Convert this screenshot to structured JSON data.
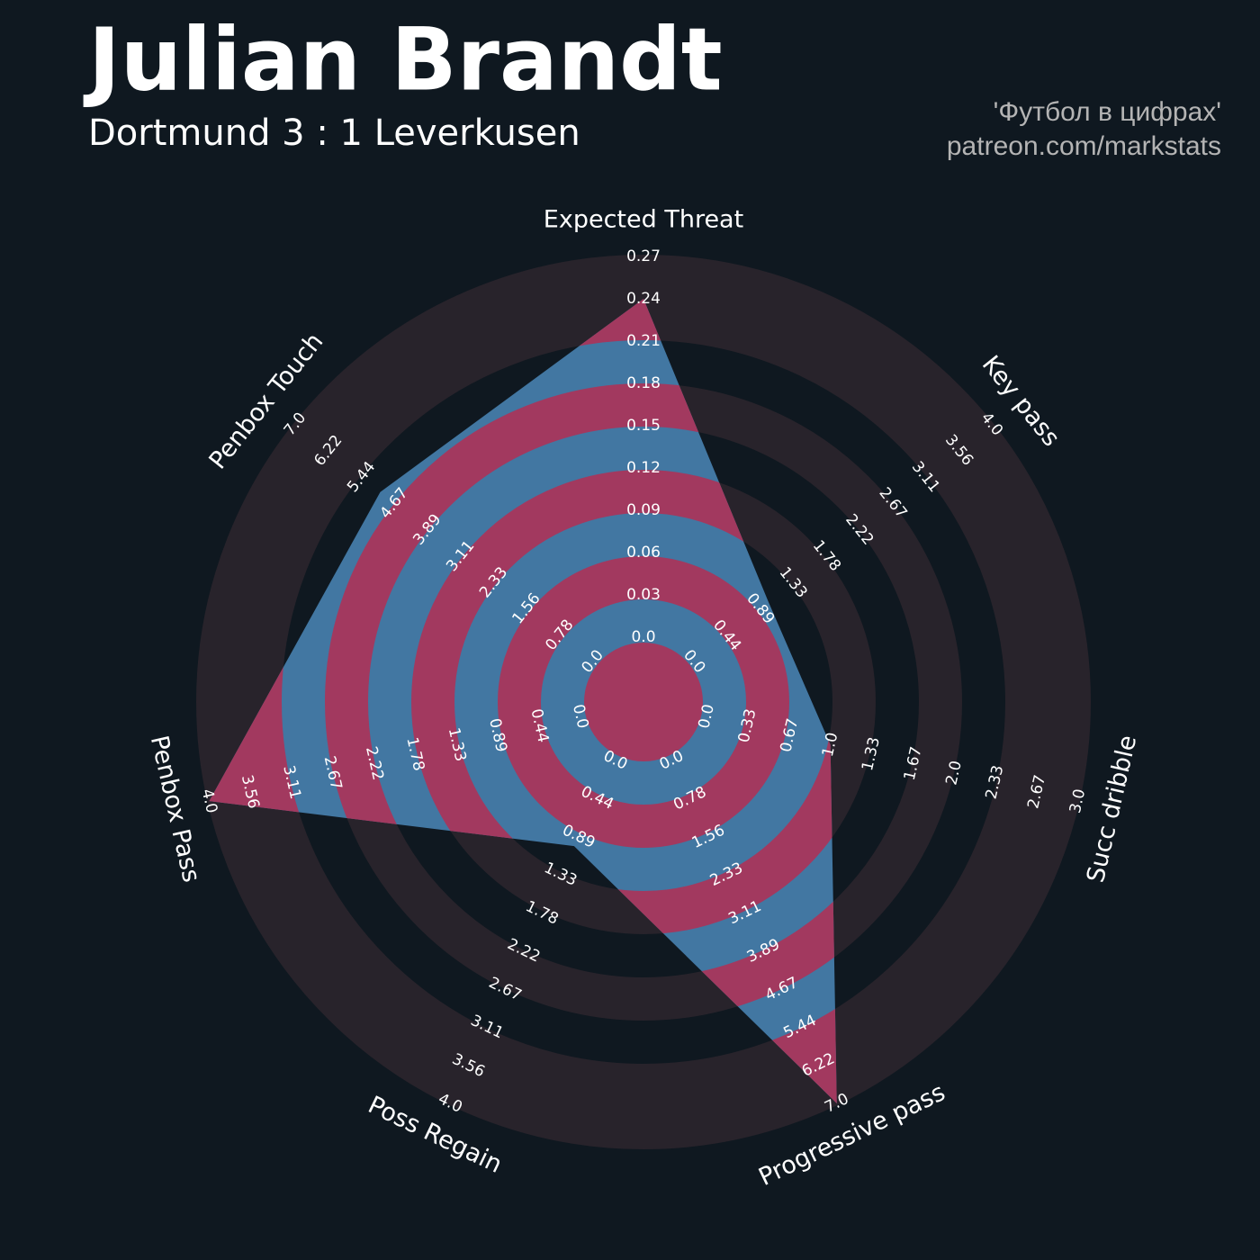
{
  "chart_data": {
    "type": "radar",
    "title": "Julian Brandt",
    "subtitle": "Dortmund 3 : 1 Leverkusen",
    "annotations": [
      "'Футбол в цифрах'",
      "patreon.com/markstats"
    ],
    "axes": [
      {
        "name": "Expected Threat",
        "lim": [
          0,
          0.27
        ],
        "ticks": [
          {
            "value": 0,
            "label": "0.0"
          },
          0.03,
          0.06,
          0.09,
          0.12,
          0.15,
          0.18,
          0.21,
          0.24,
          0.27
        ]
      },
      {
        "name": "Key pass",
        "lim": [
          0,
          4
        ],
        "ticks": [
          {
            "value": 0,
            "label": "0.0"
          },
          0.44,
          0.89,
          1.33,
          1.78,
          2.22,
          2.67,
          3.11,
          3.56,
          {
            "value": 4,
            "label": "4.0"
          }
        ]
      },
      {
        "name": "Succ dribble",
        "lim": [
          0,
          3
        ],
        "ticks": [
          {
            "value": 0,
            "label": "0.0"
          },
          0.33,
          0.67,
          {
            "value": 1,
            "label": "1.0"
          },
          1.33,
          1.67,
          {
            "value": 2,
            "label": "2.0"
          },
          2.33,
          2.67,
          {
            "value": 3,
            "label": "3.0"
          }
        ]
      },
      {
        "name": "Progressive pass",
        "lim": [
          0,
          7
        ],
        "ticks": [
          {
            "value": 0,
            "label": "0.0"
          },
          0.78,
          1.56,
          2.33,
          3.11,
          3.89,
          4.67,
          5.44,
          6.22,
          {
            "value": 7,
            "label": "7.0"
          }
        ]
      },
      {
        "name": "Poss Regain",
        "lim": [
          0,
          4
        ],
        "ticks": [
          {
            "value": 0,
            "label": "0.0"
          },
          0.44,
          0.89,
          1.33,
          1.78,
          2.22,
          2.67,
          3.11,
          3.56,
          {
            "value": 4,
            "label": "4.0"
          }
        ]
      },
      {
        "name": "Penbox Pass",
        "lim": [
          0,
          4
        ],
        "ticks": [
          {
            "value": 0,
            "label": "0.0"
          },
          0.44,
          0.89,
          1.33,
          1.78,
          2.22,
          2.67,
          3.11,
          3.56,
          {
            "value": 4,
            "label": "4.0"
          }
        ]
      },
      {
        "name": "Penbox Touch",
        "lim": [
          0,
          7
        ],
        "ticks": [
          {
            "value": 0,
            "label": "0.0"
          },
          0.78,
          1.56,
          2.33,
          3.11,
          3.89,
          4.67,
          5.44,
          6.22,
          {
            "value": 7,
            "label": "7.0"
          }
        ]
      }
    ],
    "values": [
      0.24,
      1,
      1,
      7,
      1,
      4,
      5
    ],
    "color": "#4277a2",
    "highlight_color": "#a2395f"
  }
}
